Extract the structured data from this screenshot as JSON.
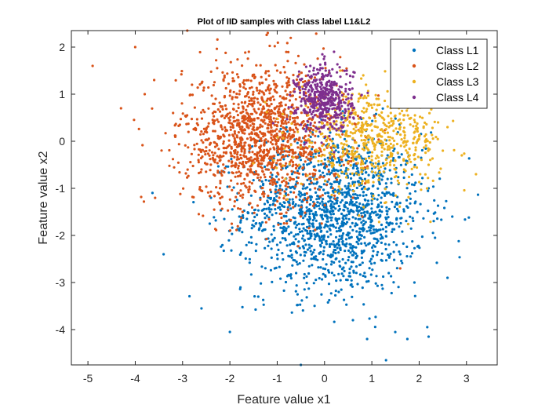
{
  "chart_data": {
    "type": "scatter",
    "title": "Plot of IID samples with Class label L1&L2",
    "xlabel": "Feature value x1",
    "ylabel": "Feature value x2",
    "xlim": [
      -5.35,
      3.65
    ],
    "ylim": [
      -4.75,
      2.35
    ],
    "xticks": [
      -5,
      -4,
      -3,
      -2,
      -1,
      0,
      1,
      2,
      3
    ],
    "yticks": [
      -4,
      -3,
      -2,
      -1,
      0,
      1,
      2
    ],
    "grid": false,
    "legend_position": "top-right",
    "series": [
      {
        "name": "Class L1",
        "color": "#0072BD",
        "approx_count": 1500,
        "approx_center": [
          0.2,
          -1.5
        ],
        "approx_spread": [
          0.95,
          0.85
        ],
        "sample_points": [
          [
            -0.4,
            -1.0
          ],
          [
            0.0,
            -1.5
          ],
          [
            0.5,
            -2.0
          ],
          [
            1.2,
            -1.2
          ],
          [
            -1.0,
            -2.2
          ],
          [
            0.8,
            -0.6
          ],
          [
            -0.6,
            -2.8
          ],
          [
            1.6,
            -2.4
          ],
          [
            -1.8,
            -1.6
          ],
          [
            0.3,
            -3.2
          ],
          [
            2.2,
            -1.0
          ],
          [
            -2.4,
            -1.2
          ],
          [
            1.9,
            -3.0
          ],
          [
            -1.4,
            -3.3
          ],
          [
            0.6,
            -3.8
          ],
          [
            2.6,
            -2.9
          ],
          [
            -3.4,
            -2.4
          ],
          [
            1.3,
            -4.65
          ],
          [
            -0.5,
            -4.75
          ],
          [
            2.2,
            -4.15
          ],
          [
            1.75,
            -4.2
          ],
          [
            -2.0,
            -4.05
          ],
          [
            2.7,
            -1.6
          ],
          [
            -2.6,
            -3.55
          ],
          [
            0.9,
            -4.2
          ],
          [
            -1.2,
            -0.6
          ],
          [
            0.1,
            -0.5
          ],
          [
            1.0,
            -1.8
          ],
          [
            -0.2,
            -2.5
          ],
          [
            1.4,
            -0.3
          ]
        ]
      },
      {
        "name": "Class L2",
        "color": "#D95319",
        "approx_count": 1400,
        "approx_center": [
          -1.3,
          0.1
        ],
        "approx_spread": [
          0.85,
          0.75
        ],
        "sample_points": [
          [
            -1.5,
            0.3
          ],
          [
            -1.0,
            -0.2
          ],
          [
            -2.0,
            0.6
          ],
          [
            -0.6,
            -0.5
          ],
          [
            -1.8,
            1.0
          ],
          [
            -2.5,
            0.2
          ],
          [
            -0.3,
            0.2
          ],
          [
            -1.2,
            0.9
          ],
          [
            -2.8,
            1.2
          ],
          [
            -3.2,
            0.6
          ],
          [
            -0.8,
            -0.9
          ],
          [
            -2.2,
            -0.4
          ],
          [
            -1.0,
            1.5
          ],
          [
            0.2,
            -0.7
          ],
          [
            -3.6,
            1.3
          ],
          [
            -4.3,
            0.7
          ],
          [
            -4.0,
            2.0
          ],
          [
            -4.9,
            1.6
          ],
          [
            -2.9,
            2.35
          ],
          [
            -1.2,
            2.3
          ],
          [
            0.6,
            -1.2
          ],
          [
            -2.6,
            -0.6
          ],
          [
            -1.6,
            1.9
          ],
          [
            0.8,
            -1.6
          ],
          [
            1.6,
            -2.7
          ],
          [
            -3.8,
            1.0
          ],
          [
            -0.2,
            -1.0
          ],
          [
            -1.4,
            -0.5
          ],
          [
            -2.3,
            0.9
          ],
          [
            -0.9,
            0.4
          ]
        ]
      },
      {
        "name": "Class L3",
        "color": "#EDB120",
        "approx_count": 600,
        "approx_center": [
          1.0,
          0.0
        ],
        "approx_spread": [
          0.75,
          0.5
        ],
        "sample_points": [
          [
            0.8,
            0.2
          ],
          [
            1.2,
            0.0
          ],
          [
            1.6,
            0.3
          ],
          [
            0.4,
            -0.2
          ],
          [
            2.0,
            0.1
          ],
          [
            1.0,
            -0.4
          ],
          [
            2.4,
            0.4
          ],
          [
            0.2,
            0.4
          ],
          [
            1.8,
            -0.3
          ],
          [
            2.6,
            0.3
          ],
          [
            3.2,
            -0.7
          ],
          [
            2.9,
            -0.3
          ],
          [
            1.4,
            0.6
          ],
          [
            0.6,
            0.7
          ],
          [
            2.2,
            -0.5
          ],
          [
            0.0,
            -0.3
          ],
          [
            1.1,
            0.9
          ],
          [
            2.5,
            -0.2
          ],
          [
            1.5,
            -0.6
          ],
          [
            0.5,
            -0.6
          ]
        ]
      },
      {
        "name": "Class L4",
        "color": "#7E2F8E",
        "approx_count": 450,
        "approx_center": [
          0.0,
          0.9
        ],
        "approx_spread": [
          0.3,
          0.35
        ],
        "sample_points": [
          [
            0.0,
            0.9
          ],
          [
            -0.2,
            1.2
          ],
          [
            0.2,
            0.7
          ],
          [
            -0.4,
            0.8
          ],
          [
            0.3,
            1.1
          ],
          [
            0.1,
            1.5
          ],
          [
            -0.1,
            0.5
          ],
          [
            0.4,
            0.4
          ],
          [
            -0.3,
            1.6
          ],
          [
            0.0,
            1.8
          ],
          [
            -0.5,
            1.3
          ],
          [
            0.5,
            1.0
          ],
          [
            -0.1,
            0.2
          ],
          [
            0.2,
            1.9
          ],
          [
            -0.6,
            0.6
          ]
        ]
      }
    ]
  }
}
